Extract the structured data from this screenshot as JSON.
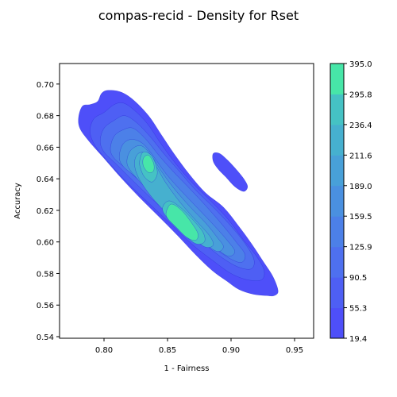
{
  "chart_data": {
    "type": "density",
    "title": "compas-recid - Density for Rset",
    "xlabel": "1 - Fairness",
    "ylabel": "Accuracy",
    "xlim": [
      0.765,
      0.965
    ],
    "ylim": [
      0.539,
      0.713
    ],
    "xticks": [
      0.8,
      0.85,
      0.9,
      0.95
    ],
    "yticks": [
      0.54,
      0.56,
      0.58,
      0.6,
      0.62,
      0.64,
      0.66,
      0.68,
      0.7
    ],
    "xtick_labels": [
      "0.80",
      "0.85",
      "0.90",
      "0.95"
    ],
    "ytick_labels": [
      "0.54",
      "0.56",
      "0.58",
      "0.60",
      "0.62",
      "0.64",
      "0.66",
      "0.68",
      "0.70"
    ],
    "grid": false,
    "colorbar": {
      "levels": [
        19.4,
        55.3,
        90.5,
        125.9,
        159.5,
        189.0,
        211.6,
        236.4,
        295.8,
        395.0
      ],
      "labels": [
        "19.4",
        "55.3",
        "90.5",
        "125.9",
        "159.5",
        "189.0",
        "211.6",
        "236.4",
        "295.8",
        "395.0"
      ],
      "colors": [
        "#4e4ff9",
        "#4e5ff4",
        "#4e70ef",
        "#4c80e8",
        "#4a90e0",
        "#48a0d8",
        "#46b0cf",
        "#45c2c4",
        "#47e6a8"
      ]
    },
    "contours": [
      {
        "level": 19.4,
        "points": [
          [
            0.78,
            0.679
          ],
          [
            0.783,
            0.686
          ],
          [
            0.789,
            0.687
          ],
          [
            0.795,
            0.689
          ],
          [
            0.798,
            0.694
          ],
          [
            0.803,
            0.696
          ],
          [
            0.813,
            0.695
          ],
          [
            0.823,
            0.69
          ],
          [
            0.835,
            0.68
          ],
          [
            0.845,
            0.668
          ],
          [
            0.855,
            0.656
          ],
          [
            0.867,
            0.643
          ],
          [
            0.88,
            0.631
          ],
          [
            0.894,
            0.622
          ],
          [
            0.906,
            0.61
          ],
          [
            0.916,
            0.599
          ],
          [
            0.925,
            0.588
          ],
          [
            0.933,
            0.578
          ],
          [
            0.937,
            0.569
          ],
          [
            0.934,
            0.566
          ],
          [
            0.928,
            0.566
          ],
          [
            0.917,
            0.567
          ],
          [
            0.906,
            0.57
          ],
          [
            0.897,
            0.575
          ],
          [
            0.885,
            0.582
          ],
          [
            0.872,
            0.592
          ],
          [
            0.858,
            0.604
          ],
          [
            0.842,
            0.617
          ],
          [
            0.827,
            0.629
          ],
          [
            0.813,
            0.641
          ],
          [
            0.8,
            0.653
          ],
          [
            0.788,
            0.664
          ],
          [
            0.781,
            0.672
          ]
        ]
      },
      {
        "level": 19.4,
        "points": [
          [
            0.886,
            0.656
          ],
          [
            0.891,
            0.656
          ],
          [
            0.897,
            0.652
          ],
          [
            0.904,
            0.646
          ],
          [
            0.91,
            0.64
          ],
          [
            0.913,
            0.635
          ],
          [
            0.91,
            0.632
          ],
          [
            0.903,
            0.635
          ],
          [
            0.896,
            0.641
          ],
          [
            0.89,
            0.646
          ],
          [
            0.886,
            0.651
          ]
        ]
      },
      {
        "level": 55.3,
        "points": [
          [
            0.789,
            0.67
          ],
          [
            0.792,
            0.678
          ],
          [
            0.8,
            0.682
          ],
          [
            0.808,
            0.687
          ],
          [
            0.815,
            0.688
          ],
          [
            0.823,
            0.684
          ],
          [
            0.834,
            0.675
          ],
          [
            0.845,
            0.662
          ],
          [
            0.857,
            0.649
          ],
          [
            0.87,
            0.637
          ],
          [
            0.884,
            0.626
          ],
          [
            0.898,
            0.614
          ],
          [
            0.91,
            0.601
          ],
          [
            0.92,
            0.591
          ],
          [
            0.926,
            0.582
          ],
          [
            0.924,
            0.576
          ],
          [
            0.913,
            0.576
          ],
          [
            0.9,
            0.58
          ],
          [
            0.886,
            0.588
          ],
          [
            0.87,
            0.598
          ],
          [
            0.853,
            0.611
          ],
          [
            0.836,
            0.624
          ],
          [
            0.819,
            0.637
          ],
          [
            0.804,
            0.65
          ],
          [
            0.793,
            0.661
          ]
        ]
      },
      {
        "level": 90.5,
        "points": [
          [
            0.797,
            0.664
          ],
          [
            0.8,
            0.672
          ],
          [
            0.808,
            0.677
          ],
          [
            0.816,
            0.68
          ],
          [
            0.825,
            0.676
          ],
          [
            0.836,
            0.667
          ],
          [
            0.847,
            0.656
          ],
          [
            0.859,
            0.645
          ],
          [
            0.872,
            0.633
          ],
          [
            0.886,
            0.622
          ],
          [
            0.9,
            0.61
          ],
          [
            0.911,
            0.599
          ],
          [
            0.918,
            0.589
          ],
          [
            0.916,
            0.583
          ],
          [
            0.906,
            0.584
          ],
          [
            0.893,
            0.59
          ],
          [
            0.877,
            0.6
          ],
          [
            0.86,
            0.611
          ],
          [
            0.842,
            0.624
          ],
          [
            0.825,
            0.637
          ],
          [
            0.81,
            0.649
          ],
          [
            0.8,
            0.657
          ]
        ]
      },
      {
        "level": 125.9,
        "points": [
          [
            0.805,
            0.659
          ],
          [
            0.808,
            0.667
          ],
          [
            0.815,
            0.671
          ],
          [
            0.823,
            0.672
          ],
          [
            0.833,
            0.665
          ],
          [
            0.843,
            0.655
          ],
          [
            0.854,
            0.645
          ],
          [
            0.866,
            0.635
          ],
          [
            0.88,
            0.623
          ],
          [
            0.893,
            0.611
          ],
          [
            0.904,
            0.6
          ],
          [
            0.911,
            0.592
          ],
          [
            0.908,
            0.587
          ],
          [
            0.898,
            0.59
          ],
          [
            0.884,
            0.598
          ],
          [
            0.868,
            0.609
          ],
          [
            0.851,
            0.621
          ],
          [
            0.834,
            0.634
          ],
          [
            0.818,
            0.646
          ],
          [
            0.808,
            0.653
          ]
        ]
      },
      {
        "level": 159.5,
        "points": [
          [
            0.812,
            0.654
          ],
          [
            0.815,
            0.662
          ],
          [
            0.822,
            0.665
          ],
          [
            0.831,
            0.662
          ],
          [
            0.84,
            0.653
          ],
          [
            0.849,
            0.643
          ],
          [
            0.86,
            0.633
          ],
          [
            0.873,
            0.622
          ],
          [
            0.886,
            0.611
          ],
          [
            0.897,
            0.601
          ],
          [
            0.903,
            0.594
          ],
          [
            0.898,
            0.591
          ],
          [
            0.888,
            0.596
          ],
          [
            0.874,
            0.605
          ],
          [
            0.858,
            0.617
          ],
          [
            0.841,
            0.629
          ],
          [
            0.825,
            0.641
          ],
          [
            0.815,
            0.648
          ]
        ]
      },
      {
        "level": 189.0,
        "points": [
          [
            0.818,
            0.651
          ],
          [
            0.821,
            0.658
          ],
          [
            0.829,
            0.661
          ],
          [
            0.837,
            0.655
          ],
          [
            0.845,
            0.645
          ],
          [
            0.855,
            0.634
          ],
          [
            0.868,
            0.622
          ],
          [
            0.88,
            0.612
          ],
          [
            0.889,
            0.603
          ],
          [
            0.894,
            0.597
          ],
          [
            0.889,
            0.594
          ],
          [
            0.878,
            0.6
          ],
          [
            0.864,
            0.61
          ],
          [
            0.848,
            0.622
          ],
          [
            0.832,
            0.635
          ],
          [
            0.821,
            0.645
          ]
        ]
      },
      {
        "level": 211.6,
        "points": [
          [
            0.824,
            0.65
          ],
          [
            0.827,
            0.656
          ],
          [
            0.834,
            0.656
          ],
          [
            0.841,
            0.648
          ],
          [
            0.849,
            0.637
          ],
          [
            0.861,
            0.624
          ],
          [
            0.873,
            0.613
          ],
          [
            0.883,
            0.604
          ],
          [
            0.886,
            0.598
          ],
          [
            0.879,
            0.597
          ],
          [
            0.867,
            0.605
          ],
          [
            0.852,
            0.616
          ],
          [
            0.837,
            0.629
          ],
          [
            0.827,
            0.641
          ]
        ]
      },
      {
        "level": 236.4,
        "points": [
          [
            0.828,
            0.651
          ],
          [
            0.831,
            0.657
          ],
          [
            0.838,
            0.654
          ],
          [
            0.842,
            0.644
          ],
          [
            0.838,
            0.638
          ],
          [
            0.832,
            0.641
          ],
          [
            0.829,
            0.646
          ]
        ]
      },
      {
        "level": 236.4,
        "points": [
          [
            0.846,
            0.621
          ],
          [
            0.851,
            0.626
          ],
          [
            0.86,
            0.622
          ],
          [
            0.87,
            0.614
          ],
          [
            0.878,
            0.606
          ],
          [
            0.879,
            0.6
          ],
          [
            0.872,
            0.599
          ],
          [
            0.861,
            0.606
          ],
          [
            0.851,
            0.614
          ]
        ]
      },
      {
        "level": 295.8,
        "points": [
          [
            0.831,
            0.653
          ],
          [
            0.835,
            0.655
          ],
          [
            0.839,
            0.65
          ],
          [
            0.839,
            0.645
          ],
          [
            0.835,
            0.644
          ],
          [
            0.831,
            0.648
          ]
        ]
      },
      {
        "level": 295.8,
        "points": [
          [
            0.849,
            0.619
          ],
          [
            0.853,
            0.624
          ],
          [
            0.861,
            0.62
          ],
          [
            0.869,
            0.612
          ],
          [
            0.874,
            0.605
          ],
          [
            0.872,
            0.601
          ],
          [
            0.865,
            0.603
          ],
          [
            0.856,
            0.61
          ],
          [
            0.85,
            0.615
          ]
        ]
      }
    ]
  }
}
